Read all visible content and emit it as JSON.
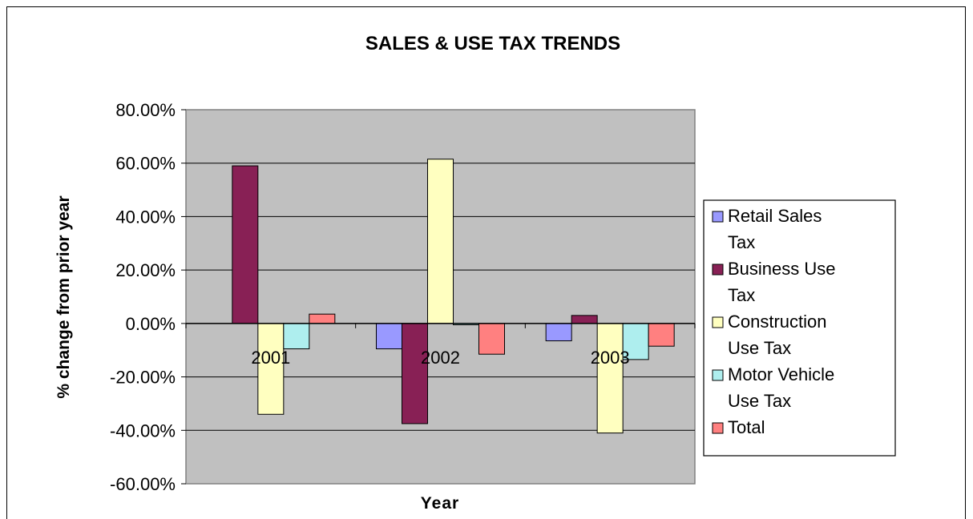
{
  "chart_data": {
    "type": "bar",
    "title": "SALES & USE TAX TRENDS",
    "xlabel": "Year",
    "ylabel": "% change from prior year",
    "categories": [
      "2001",
      "2002",
      "2003"
    ],
    "ylim": [
      -60,
      80
    ],
    "yticks": [
      80,
      60,
      40,
      20,
      0,
      -20,
      -40,
      -60
    ],
    "ytick_labels": [
      "80.00%",
      "60.00%",
      "40.00%",
      "20.00%",
      "0.00%",
      "-20.00%",
      "-40.00%",
      "-60.00%"
    ],
    "grid": true,
    "legend_position": "right",
    "series": [
      {
        "name": "Retail Sales Tax",
        "legend_lines": [
          "Retail Sales",
          "Tax"
        ],
        "color": "#9999FF",
        "values": [
          0,
          -9.5,
          -6.5
        ]
      },
      {
        "name": "Business Use Tax",
        "legend_lines": [
          "Business Use",
          "Tax"
        ],
        "color": "#882055",
        "values": [
          59,
          -37.5,
          3
        ]
      },
      {
        "name": "Construction Use Tax",
        "legend_lines": [
          "Construction",
          "Use Tax"
        ],
        "color": "#FFFFC0",
        "values": [
          -34,
          61.5,
          -41
        ]
      },
      {
        "name": "Motor Vehicle Use Tax",
        "legend_lines": [
          "Motor Vehicle",
          "Use Tax"
        ],
        "color": "#AEEEEE",
        "values": [
          -9.5,
          -0.5,
          -13.5
        ]
      },
      {
        "name": "Total",
        "legend_lines": [
          "Total"
        ],
        "color": "#FF8080",
        "values": [
          3.5,
          -11.5,
          -8.5
        ]
      }
    ]
  }
}
